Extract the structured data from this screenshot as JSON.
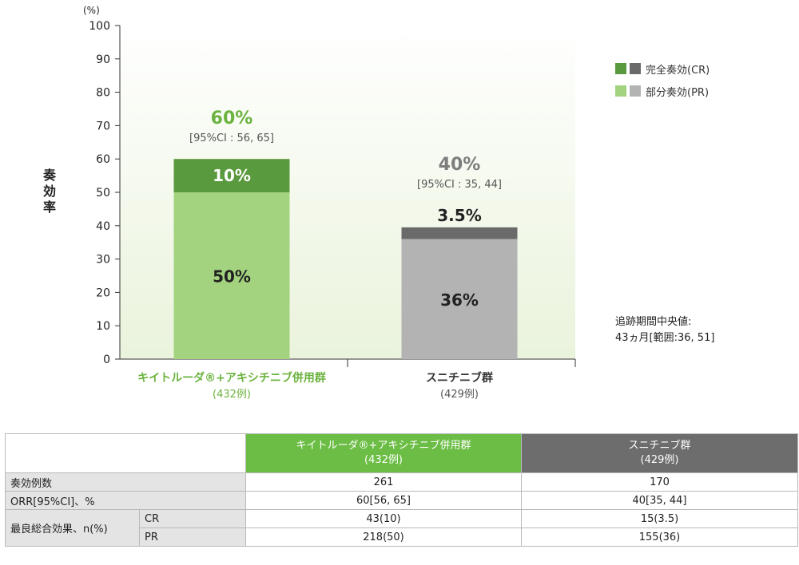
{
  "chart_data": {
    "type": "bar",
    "stacked": true,
    "y_unit_label": "(%)",
    "ylabel": "奏効率",
    "ylim": [
      0,
      100
    ],
    "yticks": [
      0,
      10,
      20,
      30,
      40,
      50,
      60,
      70,
      80,
      90,
      100
    ],
    "categories": [
      {
        "name": "キイトルーダ®+アキシチニブ併用群",
        "n": "(432例)"
      },
      {
        "name": "スニチニブ群",
        "n": "(429例)"
      }
    ],
    "series": [
      {
        "name": "部分奏効(PR)",
        "values": [
          50,
          36
        ],
        "labels": [
          "50%",
          "36%"
        ],
        "colors": [
          "#a3d37f",
          "#b3b3b3"
        ]
      },
      {
        "name": "完全奏効(CR)",
        "values": [
          10,
          3.5
        ],
        "labels": [
          "10%",
          "3.5%"
        ],
        "colors": [
          "#5a9a3e",
          "#6a6a6a"
        ]
      }
    ],
    "totals": [
      {
        "label": "60%",
        "ci": "[95%CI : 56, 65]",
        "color": "#6cb33f"
      },
      {
        "label": "40%",
        "ci": "[95%CI : 35, 44]",
        "color": "#7d7d7d"
      }
    ],
    "legend": [
      {
        "label": "完全奏効(CR)",
        "colors": [
          "#5a9a3e",
          "#6a6a6a"
        ]
      },
      {
        "label": "部分奏効(PR)",
        "colors": [
          "#a3d37f",
          "#b3b3b3"
        ]
      }
    ],
    "legend_position": "top-right",
    "category_colors": [
      "#6cb33f",
      "#333333"
    ]
  },
  "followup": {
    "line1": "追跡期間中央値:",
    "line2": "43ヵ月[範囲:36, 51]"
  },
  "table": {
    "headers": [
      {
        "name": "キイトルーダ®+アキシチニブ併用群",
        "n": "(432例)"
      },
      {
        "name": "スニチニブ群",
        "n": "(429例)"
      }
    ],
    "rows": [
      {
        "label": "奏効例数",
        "combo": "261",
        "suni": "170"
      },
      {
        "label": "ORR[95%CI]、%",
        "combo": "60[56, 65]",
        "suni": "40[35, 44]"
      }
    ],
    "best_response": {
      "label": "最良総合効果、n(%)",
      "sub": [
        {
          "label": "CR",
          "combo": "43(10)",
          "suni": "15(3.5)"
        },
        {
          "label": "PR",
          "combo": "218(50)",
          "suni": "155(36)"
        }
      ]
    }
  }
}
